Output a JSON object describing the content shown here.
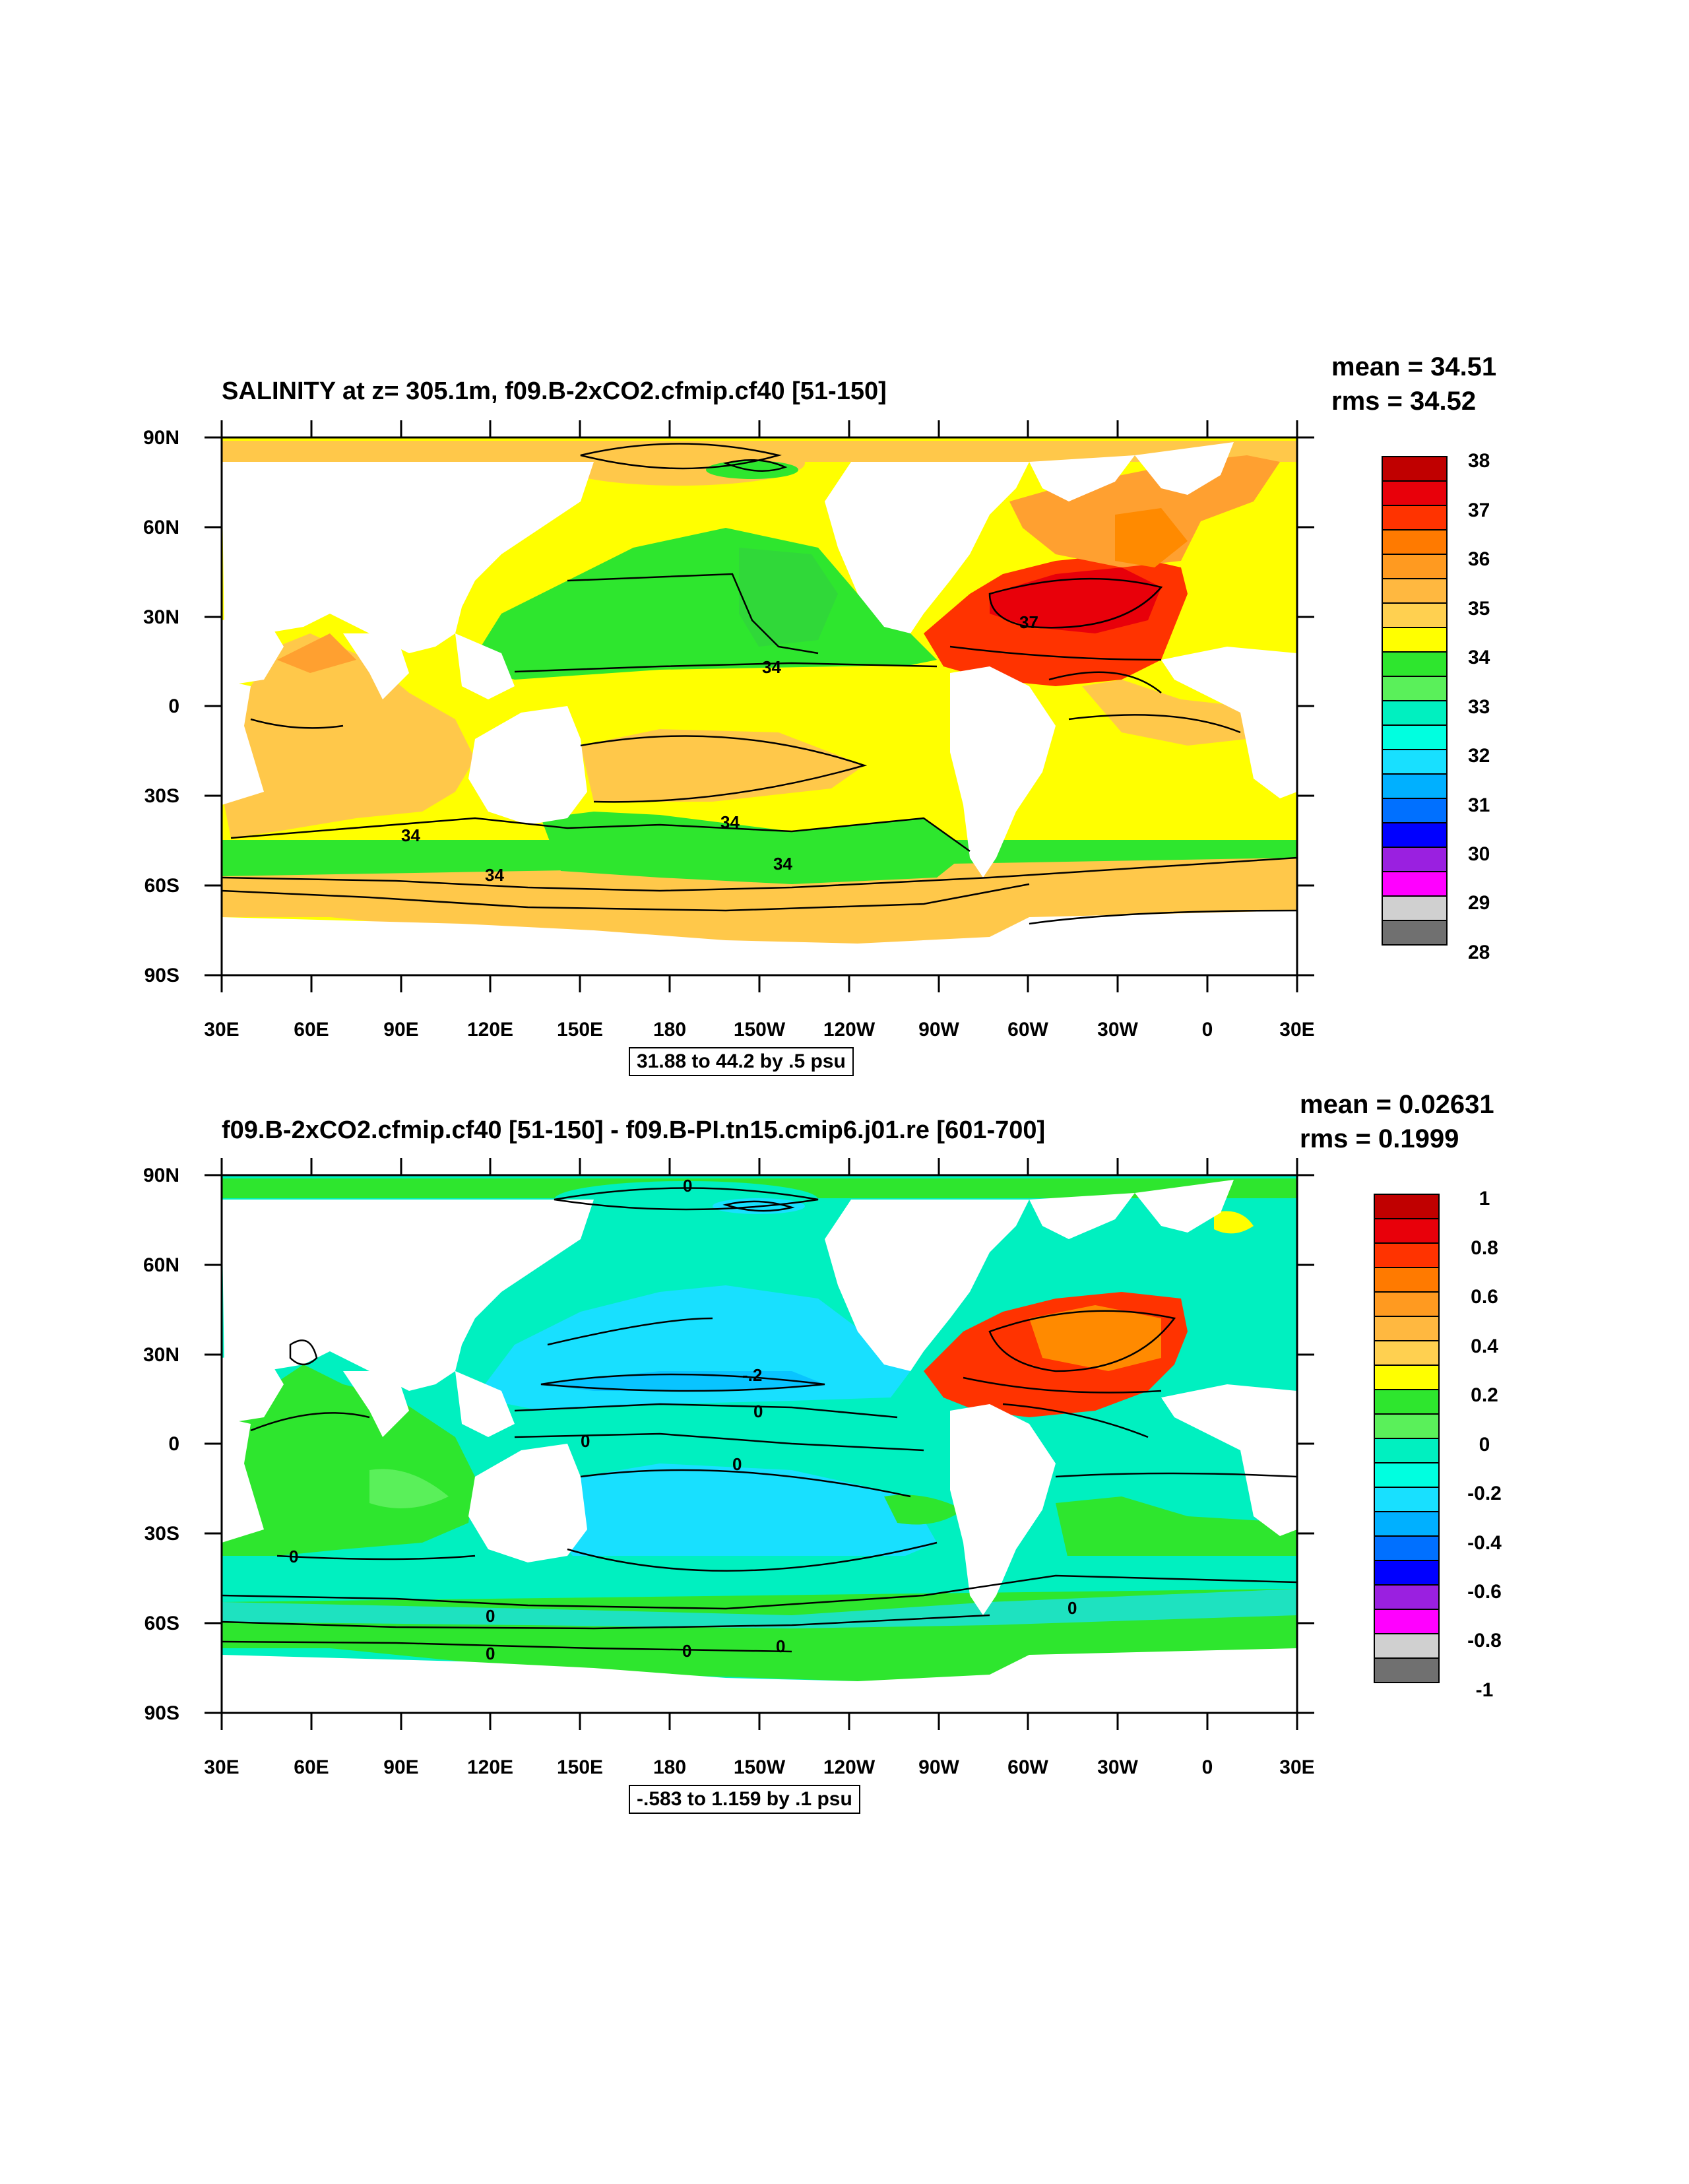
{
  "panel1": {
    "title": "SALINITY at z= 305.1m, f09.B-2xCO2.cfmip.cf40 [51-150]",
    "mean": "mean = 34.51",
    "rms": "rms = 34.52",
    "range_text": "31.88 to 44.2 by .5 psu",
    "contour_labels": [
      "37",
      "34",
      "34",
      "34",
      "34",
      "34"
    ],
    "colorbar_labels": [
      "38",
      "37",
      "36",
      "35",
      "34",
      "33",
      "32",
      "31",
      "30",
      "29",
      "28"
    ]
  },
  "panel2": {
    "title": "f09.B-2xCO2.cfmip.cf40 [51-150] - f09.B-PI.tn15.cmip6.j01.re [601-700]",
    "mean": "mean = 0.02631",
    "rms": "rms = 0.1999",
    "range_text": "-.583 to 1.159 by .1 psu",
    "contour_labels": [
      "0",
      "-.2",
      "0",
      "0",
      "0",
      "0",
      "0",
      "0",
      "0",
      "0",
      "0"
    ],
    "colorbar_labels": [
      "1",
      "0.8",
      "0.6",
      "0.4",
      "0.2",
      "0",
      "-0.2",
      "-0.4",
      "-0.6",
      "-0.8",
      "-1"
    ]
  },
  "axes": {
    "lat_labels": [
      "90N",
      "60N",
      "30N",
      "0",
      "30S",
      "60S",
      "90S"
    ],
    "lon_labels": [
      "30E",
      "60E",
      "90E",
      "120E",
      "150E",
      "180",
      "150W",
      "120W",
      "90W",
      "60W",
      "30W",
      "0",
      "30E"
    ]
  },
  "colors": {
    "salinity_palette": [
      "#c00000",
      "#e8000a",
      "#ff3300",
      "#ff8a00",
      "#ffa030",
      "#ffc84a",
      "#ffff00",
      "#2ee62e",
      "#00f0c0",
      "#18e0ff",
      "#00b0ff",
      "#0070ff",
      "#0000ff",
      "#9a20e0",
      "#ff00ff",
      "#d0d0d0",
      "#707070"
    ],
    "land": "#ffffff"
  }
}
